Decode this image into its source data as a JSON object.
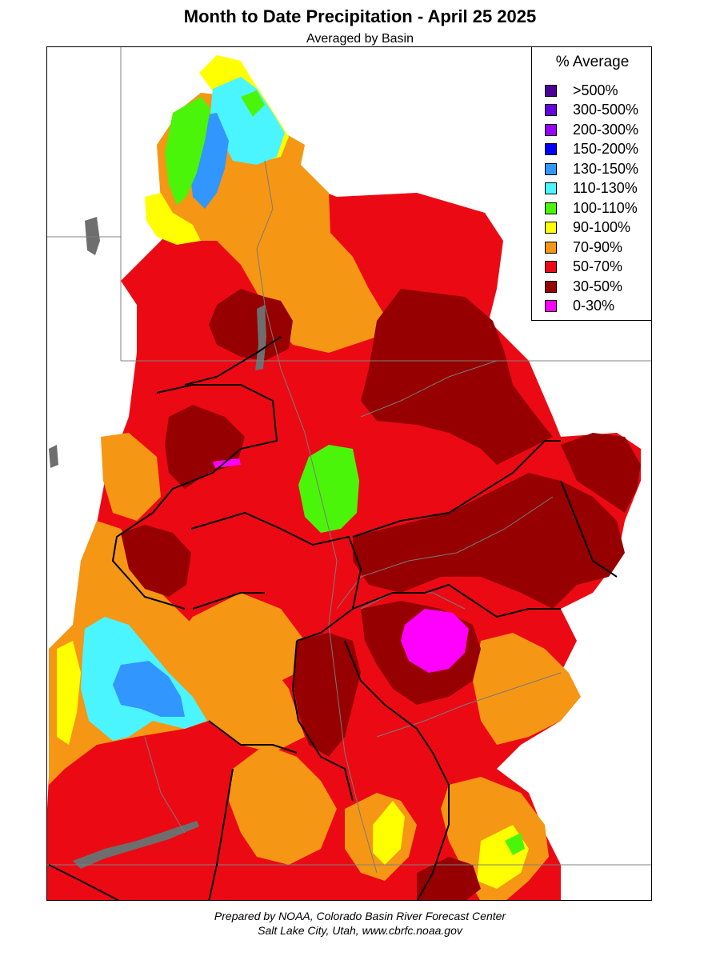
{
  "title": "Month to Date Precipitation - April 25 2025",
  "subtitle": "Averaged by Basin",
  "legend": {
    "title": "% Average",
    "items": [
      {
        "label": ">500%",
        "color": "#4b0096"
      },
      {
        "label": "300-500%",
        "color": "#6400dc"
      },
      {
        "label": "200-300%",
        "color": "#9600ff"
      },
      {
        "label": "150-200%",
        "color": "#0000ff"
      },
      {
        "label": "130-150%",
        "color": "#3296ff"
      },
      {
        "label": "110-130%",
        "color": "#4bf5ff"
      },
      {
        "label": "100-110%",
        "color": "#4bf50a"
      },
      {
        "label": "90-100%",
        "color": "#ffff00"
      },
      {
        "label": "70-90%",
        "color": "#f59614"
      },
      {
        "label": "50-70%",
        "color": "#eb0a14"
      },
      {
        "label": "30-50%",
        "color": "#960000"
      },
      {
        "label": "0-30%",
        "color": "#ff00ff"
      }
    ]
  },
  "colors": {
    "lake": "#6e6e6e",
    "basin_border": "#000000",
    "state_border": "#808080",
    "river": "#7a7a7a"
  },
  "footer": {
    "line1": "Prepared by NOAA, Colorado Basin River Forecast Center",
    "line2": "Salt Lake City, Utah, www.cbrfc.noaa.gov"
  }
}
